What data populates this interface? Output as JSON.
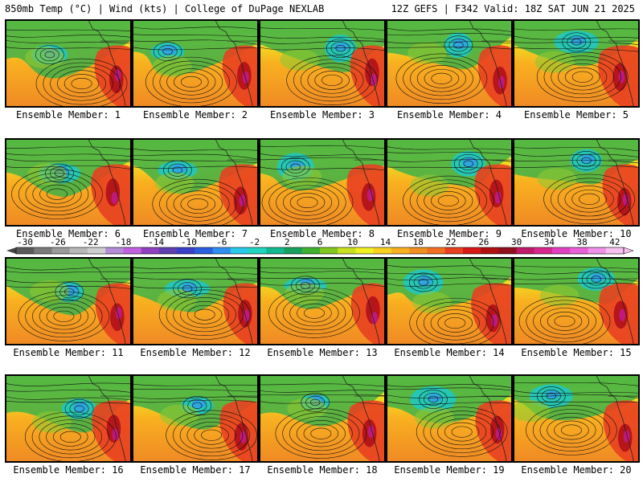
{
  "header": {
    "left": "850mb Temp (°C) | Wind (kts) | College of DuPage NEXLAB",
    "right": "12Z GEFS | F342 Valid: 18Z SAT JUN 21 2025"
  },
  "member_label_prefix": "Ensemble Member: ",
  "members": [
    "1",
    "2",
    "3",
    "4",
    "5",
    "6",
    "7",
    "8",
    "9",
    "10",
    "11",
    "12",
    "13",
    "14",
    "15",
    "16",
    "17",
    "18",
    "19",
    "20"
  ],
  "colorbar": {
    "ticks": [
      "-30",
      "-26",
      "-22",
      "-18",
      "-14",
      "-10",
      "-6",
      "-2",
      "2",
      "6",
      "10",
      "14",
      "18",
      "22",
      "26",
      "30",
      "34",
      "38",
      "42"
    ],
    "colors": [
      "#5a5a5a",
      "#7a7a7a",
      "#9a9a9a",
      "#b8b8b8",
      "#cfcfcf",
      "#b48cd8",
      "#c060e0",
      "#9040c0",
      "#6040b0",
      "#3b40c8",
      "#2a5fe0",
      "#2f8ef0",
      "#28c8e8",
      "#20d4c0",
      "#12b890",
      "#18a060",
      "#40b030",
      "#80c820",
      "#c8e020",
      "#f0f020",
      "#f8d020",
      "#f8b020",
      "#f09020",
      "#f07020",
      "#e84020",
      "#d81818",
      "#b01010",
      "#901020",
      "#c01a6a",
      "#d82890",
      "#e040c0",
      "#e860d8",
      "#f090e8",
      "#f8c0f0"
    ]
  }
}
